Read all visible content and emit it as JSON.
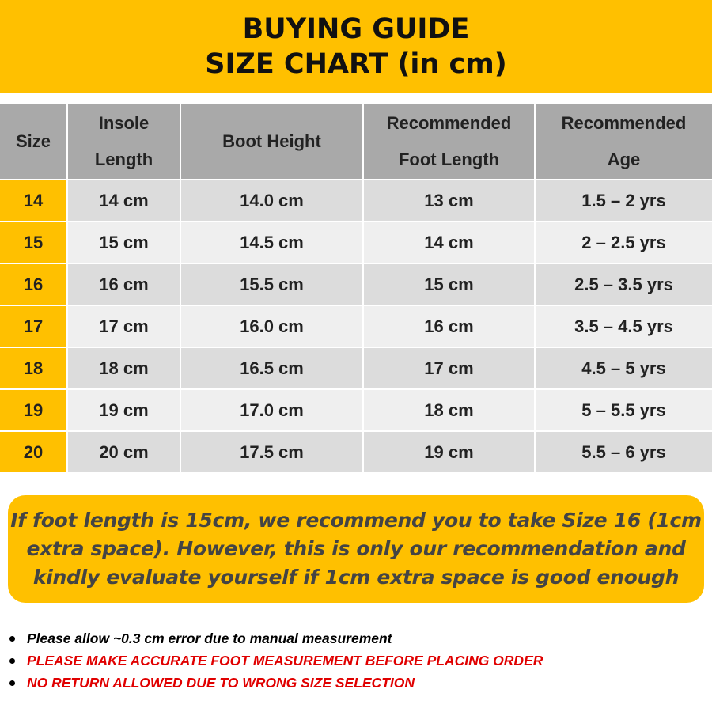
{
  "header": {
    "title_lines": [
      "BUYING GUIDE",
      "SIZE CHART (in cm)"
    ]
  },
  "table": {
    "columns": [
      [
        "Size"
      ],
      [
        "Insole",
        "Length"
      ],
      [
        "Boot Height"
      ],
      [
        "Recommended",
        "Foot Length"
      ],
      [
        "Recommended",
        "Age"
      ]
    ],
    "rows": [
      [
        "14",
        "14 cm",
        "14.0 cm",
        "13 cm",
        "1.5 – 2 yrs"
      ],
      [
        "15",
        "15 cm",
        "14.5 cm",
        "14 cm",
        "2 – 2.5 yrs"
      ],
      [
        "16",
        "16 cm",
        "15.5 cm",
        "15 cm",
        "2.5 – 3.5 yrs"
      ],
      [
        "17",
        "17 cm",
        "16.0 cm",
        "16 cm",
        "3.5 – 4.5 yrs"
      ],
      [
        "18",
        "18 cm",
        "16.5 cm",
        "17 cm",
        "4.5 – 5 yrs"
      ],
      [
        "19",
        "19 cm",
        "17.0 cm",
        "18 cm",
        "5 – 5.5 yrs"
      ],
      [
        "20",
        "20 cm",
        "17.5 cm",
        "19 cm",
        "5.5 – 6 yrs"
      ]
    ]
  },
  "recommendation": {
    "lines": [
      "If foot length is 15cm, we recommend you to take Size 16 (1cm",
      "extra space). However, this is only our recommendation and",
      "kindly evaluate yourself if 1cm extra space is good enough"
    ]
  },
  "notes": [
    {
      "text": "Please allow ~0.3 cm error due to manual measurement",
      "color": "#000000"
    },
    {
      "text": "PLEASE MAKE ACCURATE FOOT MEASUREMENT BEFORE PLACING ORDER",
      "color": "#e00000"
    },
    {
      "text": "NO RETURN ALLOWED DUE TO WRONG SIZE SELECTION",
      "color": "#e00000"
    }
  ]
}
